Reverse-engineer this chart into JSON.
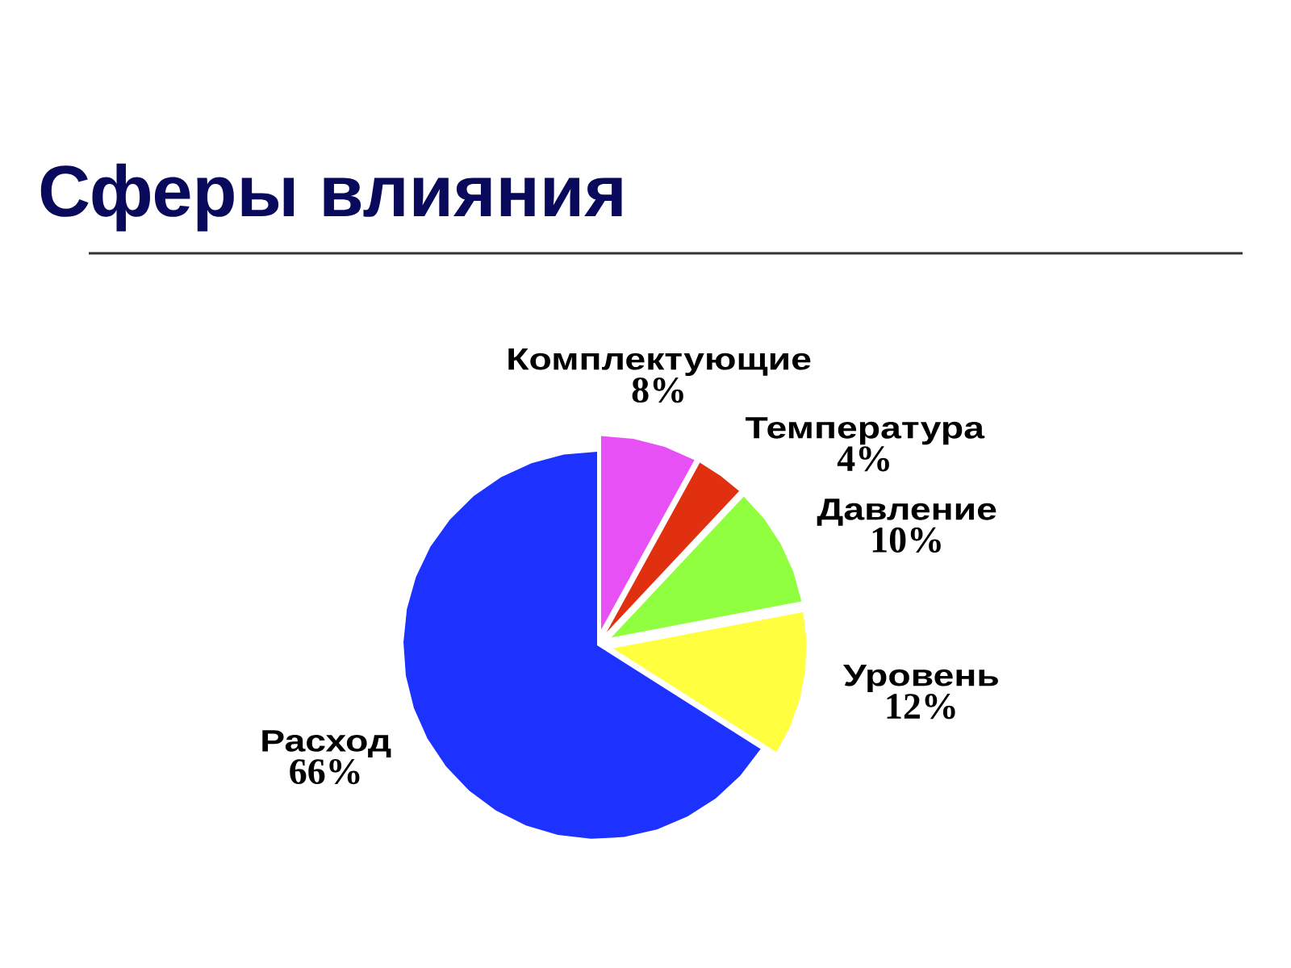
{
  "chart_data": {
    "type": "pie",
    "title": "Сферы влияния",
    "categories": [
      "Комплектующие",
      "Температура",
      "Давление",
      "Уровень",
      "Расход"
    ],
    "values": [
      8,
      4,
      10,
      12,
      66
    ],
    "value_labels": [
      "8%",
      "4%",
      "10%",
      "12%",
      "66%"
    ],
    "colors": [
      "#e650f5",
      "#e03010",
      "#90ff40",
      "#ffff40",
      "#1e32ff"
    ]
  }
}
